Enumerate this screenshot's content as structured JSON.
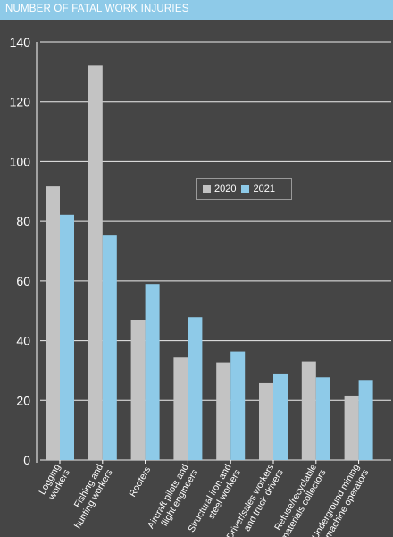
{
  "header": {
    "title": "NUMBER OF FATAL WORK INJURIES"
  },
  "colors": {
    "series_2020": "#c3c3c3",
    "series_2021": "#8ecae8",
    "background": "#454545",
    "grid": "#ffffff"
  },
  "chart_data": {
    "type": "bar",
    "title": "",
    "xlabel": "",
    "ylabel": "",
    "ylim": [
      0,
      140
    ],
    "yticks": [
      0,
      20,
      40,
      60,
      80,
      100,
      120,
      140
    ],
    "grid": true,
    "legend_position": "center-right",
    "categories": [
      [
        "Logging",
        "workers"
      ],
      [
        "Fishing and",
        "hunting workers"
      ],
      [
        "Roofers"
      ],
      [
        "Aircraft pilots and",
        "flight engineers"
      ],
      [
        "Structural iron and",
        "steel workers"
      ],
      [
        "Driver/sales workers",
        "and truck drivers"
      ],
      [
        "Refuse/recyclable",
        "materials collectors"
      ],
      [
        "Underground mining",
        "machine operators"
      ]
    ],
    "series": [
      {
        "name": "2020",
        "values": [
          91.7,
          132.1,
          46.8,
          34.4,
          32.5,
          25.8,
          33.1,
          21.6
        ]
      },
      {
        "name": "2021",
        "values": [
          82.2,
          75.2,
          59.0,
          47.9,
          36.4,
          28.8,
          27.8,
          26.6
        ]
      }
    ]
  }
}
